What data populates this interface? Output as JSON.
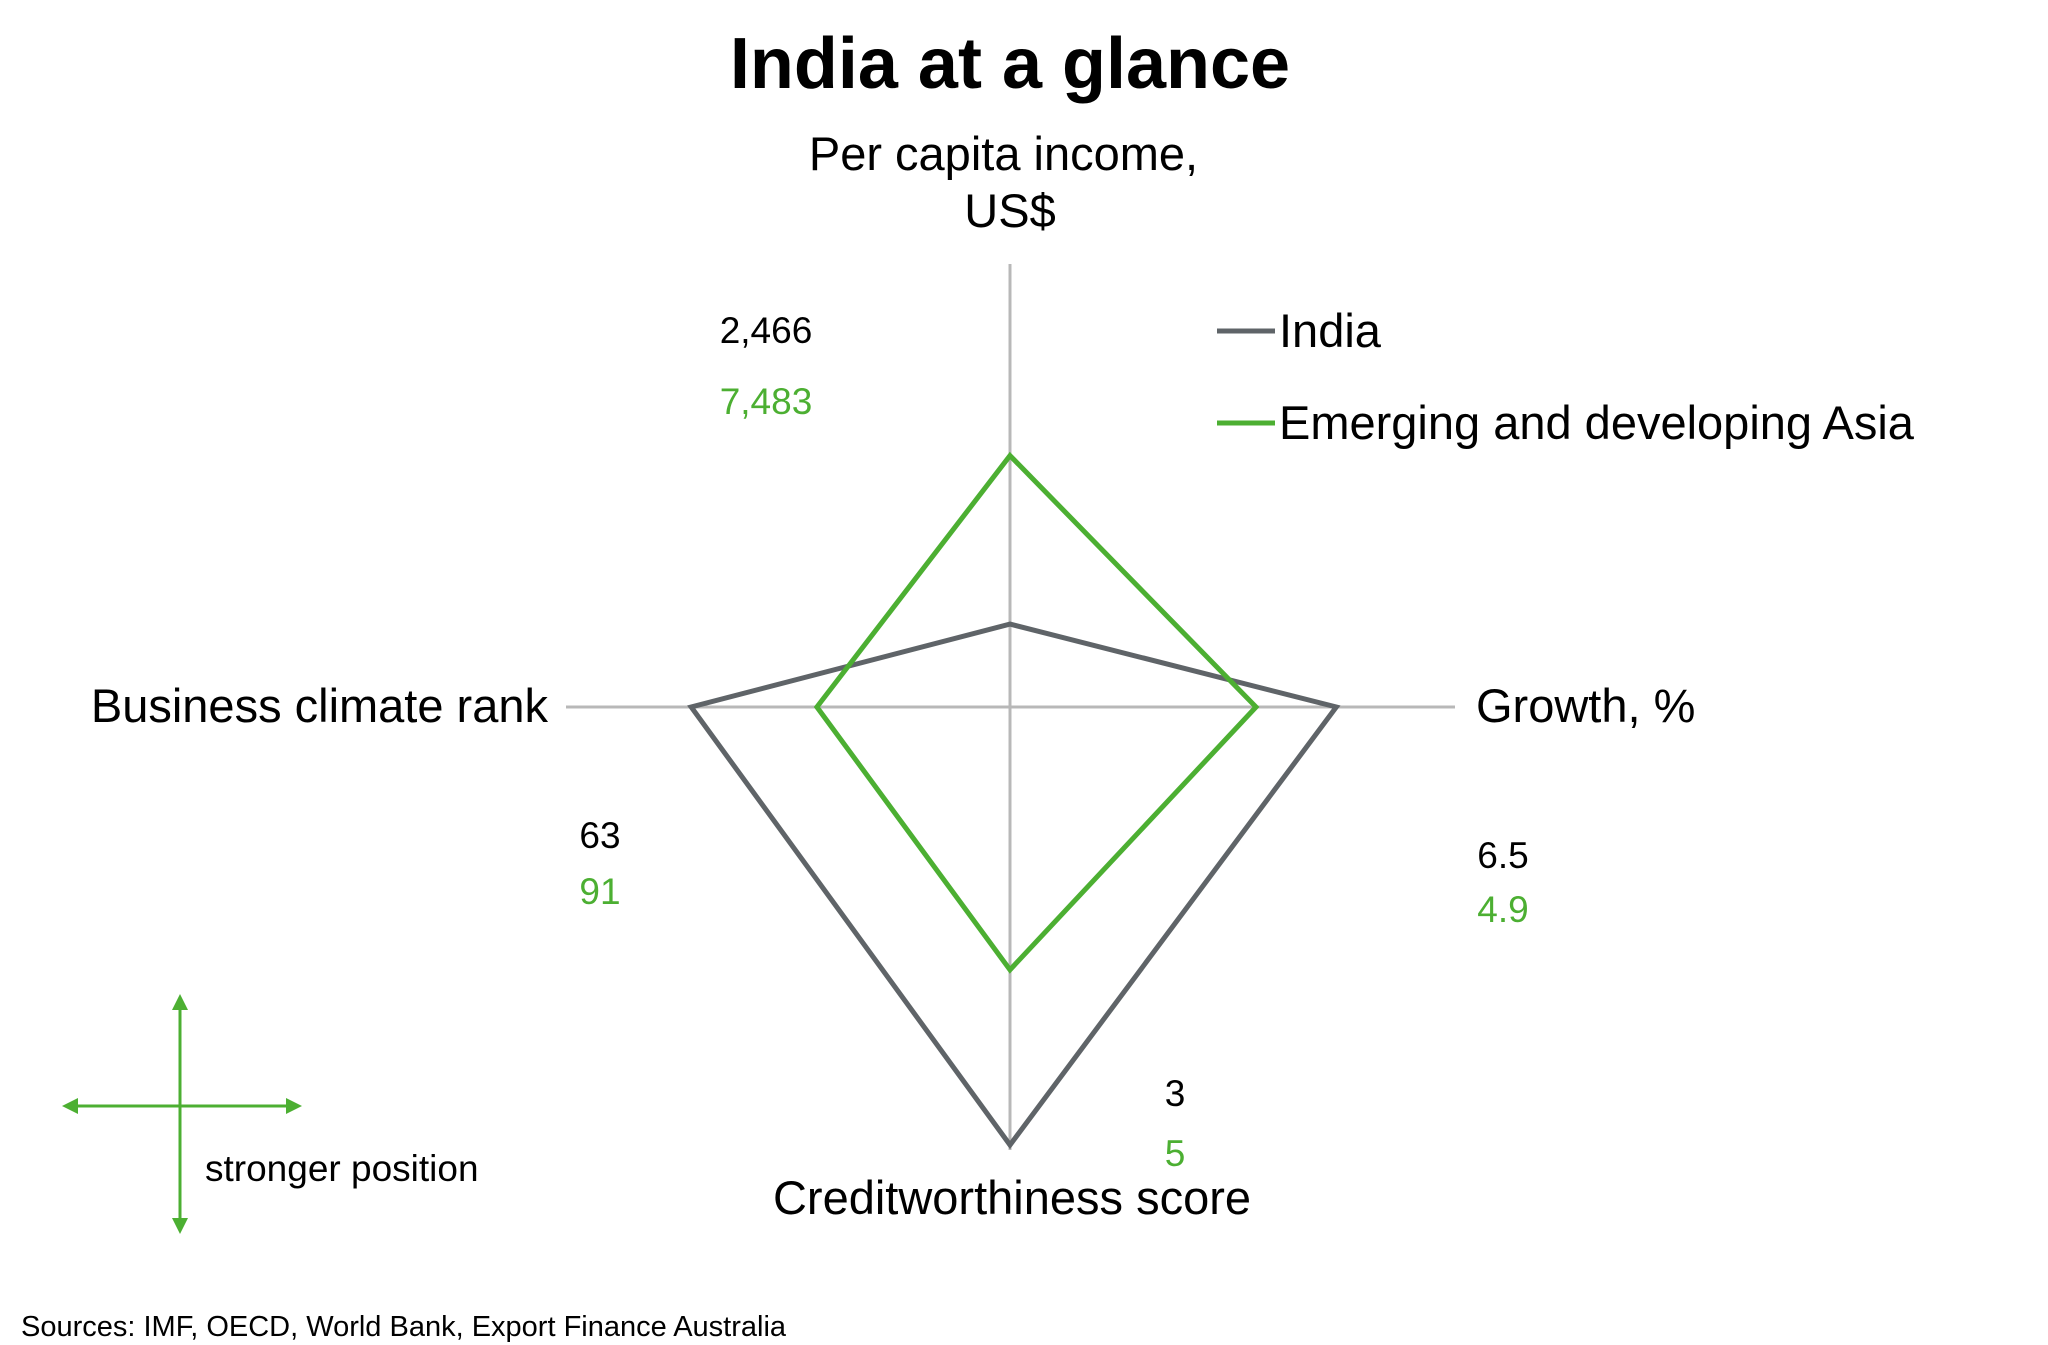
{
  "chart_data": {
    "type": "radar",
    "title": "India at a glance",
    "axes": [
      {
        "key": "income",
        "label_lines": [
          "Per capita income,",
          "US$"
        ]
      },
      {
        "key": "growth",
        "label_lines": [
          "Growth, %"
        ]
      },
      {
        "key": "credit",
        "label_lines": [
          "Creditworthiness score"
        ]
      },
      {
        "key": "business",
        "label_lines": [
          "Business climate rank"
        ]
      }
    ],
    "series": [
      {
        "name": "India",
        "color": "#5f6468",
        "values": {
          "income": 2466,
          "growth": 6.5,
          "credit": 3,
          "business": 63
        },
        "labels": {
          "income": "2,466",
          "growth": "6.5",
          "credit": "3",
          "business": "63"
        }
      },
      {
        "name": "Emerging and developing Asia",
        "color": "#4caf32",
        "values": {
          "income": 7483,
          "growth": 4.9,
          "credit": 5,
          "business": 91
        },
        "labels": {
          "income": "7,483",
          "growth": "4.9",
          "credit": "5",
          "business": "91"
        }
      }
    ],
    "direction_note": "stronger position",
    "source": "Sources: IMF, OECD, World Bank, Export Finance Australia",
    "grid": false,
    "legend_position": "top-right"
  },
  "colors": {
    "axis": "#b8b8b8",
    "india": "#5f6468",
    "asia": "#4caf32",
    "arrow": "#4caf32",
    "text": "#000000"
  }
}
